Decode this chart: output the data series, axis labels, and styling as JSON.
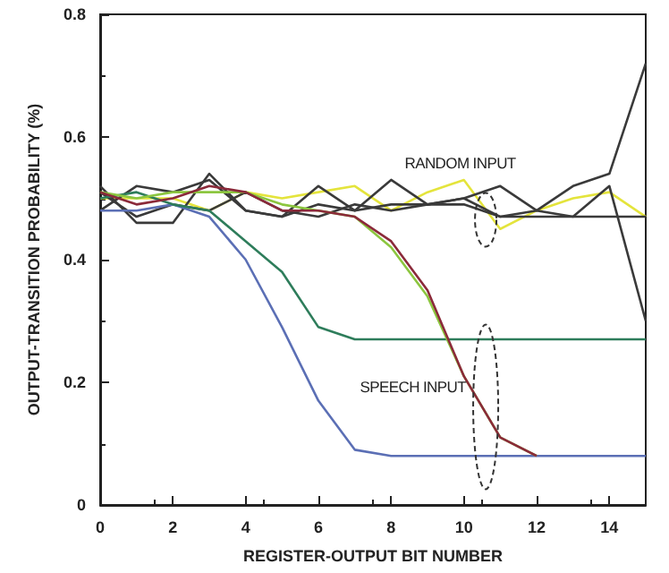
{
  "chart_data": {
    "type": "line",
    "xlabel": "REGISTER-OUTPUT BIT NUMBER",
    "ylabel": "OUTPUT-TRANSITION PROBABILITY (%)",
    "x": [
      0,
      1,
      2,
      3,
      4,
      5,
      6,
      7,
      8,
      9,
      10,
      11,
      12,
      13,
      14,
      15
    ],
    "xlim": [
      0,
      15
    ],
    "xticks": [
      0,
      2,
      4,
      6,
      8,
      10,
      12,
      14
    ],
    "ylim": [
      0,
      0.8
    ],
    "yticks": [
      0,
      0.2,
      0.4,
      0.6,
      0.8
    ],
    "grid": false,
    "marker": "none",
    "line_style": "solid",
    "series": [
      {
        "color": "#e4e43c",
        "values": [
          0.5,
          0.5,
          0.5,
          0.48,
          0.51,
          0.5,
          0.51,
          0.52,
          0.48,
          0.51,
          0.53,
          0.45,
          0.48,
          0.5,
          0.51,
          0.47
        ]
      },
      {
        "color": "#3a3a3a",
        "values": [
          0.52,
          0.46,
          0.46,
          0.54,
          0.48,
          0.47,
          0.49,
          0.48,
          0.53,
          0.49,
          0.5,
          0.52,
          0.48,
          0.47,
          0.52,
          0.3
        ]
      },
      {
        "color": "#3a3a3a",
        "values": [
          0.48,
          0.52,
          0.51,
          0.53,
          0.48,
          0.47,
          0.52,
          0.48,
          0.49,
          0.49,
          0.49,
          0.47,
          0.48,
          0.52,
          0.54,
          0.72
        ]
      },
      {
        "color": "#3a3a3a",
        "values": [
          0.51,
          0.47,
          0.49,
          0.48,
          0.51,
          0.48,
          0.47,
          0.49,
          0.48,
          0.49,
          0.5,
          0.47,
          0.47,
          0.47,
          0.47,
          0.47
        ]
      },
      {
        "color": "#5b6fb5",
        "values": [
          0.48,
          0.48,
          0.49,
          0.47,
          0.4,
          0.29,
          0.17,
          0.09,
          0.08,
          0.08,
          0.08,
          0.08,
          0.08,
          0.08,
          0.08,
          0.08
        ]
      },
      {
        "color": "#2e7d5b",
        "values": [
          0.5,
          0.51,
          0.49,
          0.48,
          0.43,
          0.38,
          0.29,
          0.27,
          0.27,
          0.27,
          0.27,
          0.27,
          0.27,
          0.27,
          0.27,
          0.27
        ]
      },
      {
        "color": "#8cc63f",
        "values": [
          0.51,
          0.5,
          0.51,
          0.51,
          0.51,
          0.49,
          0.48,
          0.47,
          0.42,
          0.34,
          0.21,
          0.11,
          0.08,
          null,
          null,
          null
        ]
      },
      {
        "color": "#8b2a3a",
        "values": [
          0.51,
          0.49,
          0.5,
          0.52,
          0.51,
          0.48,
          0.48,
          0.47,
          0.43,
          0.35,
          0.21,
          0.11,
          0.08,
          null,
          null,
          null
        ]
      }
    ],
    "annotations": [
      "RANDOM INPUT",
      "SPEECH INPUT"
    ]
  }
}
